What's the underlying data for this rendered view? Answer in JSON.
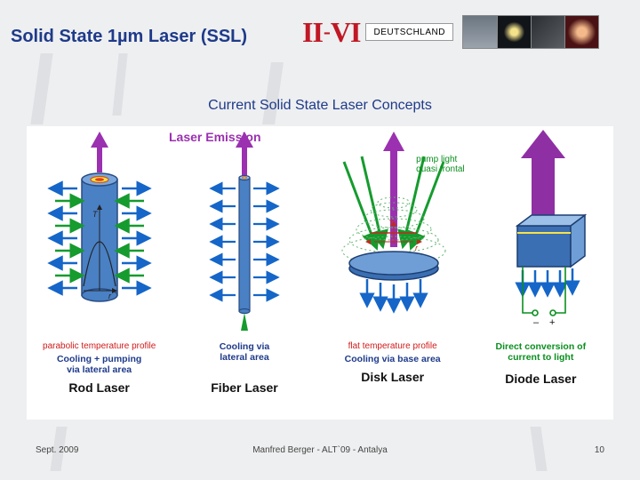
{
  "title": "Solid State 1µm Laser (SSL)",
  "logo": {
    "roman": "II-VI",
    "sub": "DEUTSCHLAND",
    "red": "#c01825",
    "thumbs": [
      "#6b7680",
      "#111418",
      "#2a2e33",
      "#4a1214"
    ]
  },
  "subtitle": "Current Solid State Laser Concepts",
  "labels": {
    "laser_emission": "Laser Emission",
    "pump_quasi": "pump light\nquasi frontal"
  },
  "lasers": [
    {
      "name": "Rod Laser",
      "redNote": "parabolic temperature profile",
      "blueNote": "Cooling +  pumping\nvia lateral area",
      "greenNote": "",
      "outputArrowColor": "#9b30b0",
      "pumpColor": "#159b2e",
      "coolColor": "#1566c8",
      "bodyFill": "#4a80c4",
      "bodyStroke": "#274b82"
    },
    {
      "name": "Fiber Laser",
      "redNote": "",
      "blueNote": "Cooling via\nlateral area",
      "greenNote": "",
      "outputArrowColor": "#9b30b0",
      "pumpColor": "#159b2e",
      "coolColor": "#1566c8",
      "bodyFill": "#4a80c4",
      "bodyStroke": "#274b82"
    },
    {
      "name": "Disk Laser",
      "redNote": "flat temperature profile",
      "blueNote": "Cooling via base area",
      "greenNote": "",
      "outputArrowColor": "#9b30b0",
      "pumpColor": "#159b2e",
      "coolColor": "#1566c8",
      "diskFill": "#3b6fb3",
      "diskStroke": "#1c3e72"
    },
    {
      "name": "Diode Laser",
      "redNote": "",
      "blueNote": "",
      "greenNote": "Direct conversion of\ncurrent to light",
      "outputArrowColor": "#8e2fa4",
      "coolColor": "#1566c8",
      "bodyFill": "#3b6fb3",
      "bodyStroke": "#1c3e72",
      "wireColor": "#0a8f1e"
    }
  ],
  "footer": {
    "left": "Sept. 2009",
    "center": "Manfred Berger  - ALT`09 - Antalya",
    "page": "10"
  },
  "colors": {
    "titleBlue": "#1e3a8a",
    "bg": "#eeeff0",
    "accent": "#d0d2d6"
  }
}
